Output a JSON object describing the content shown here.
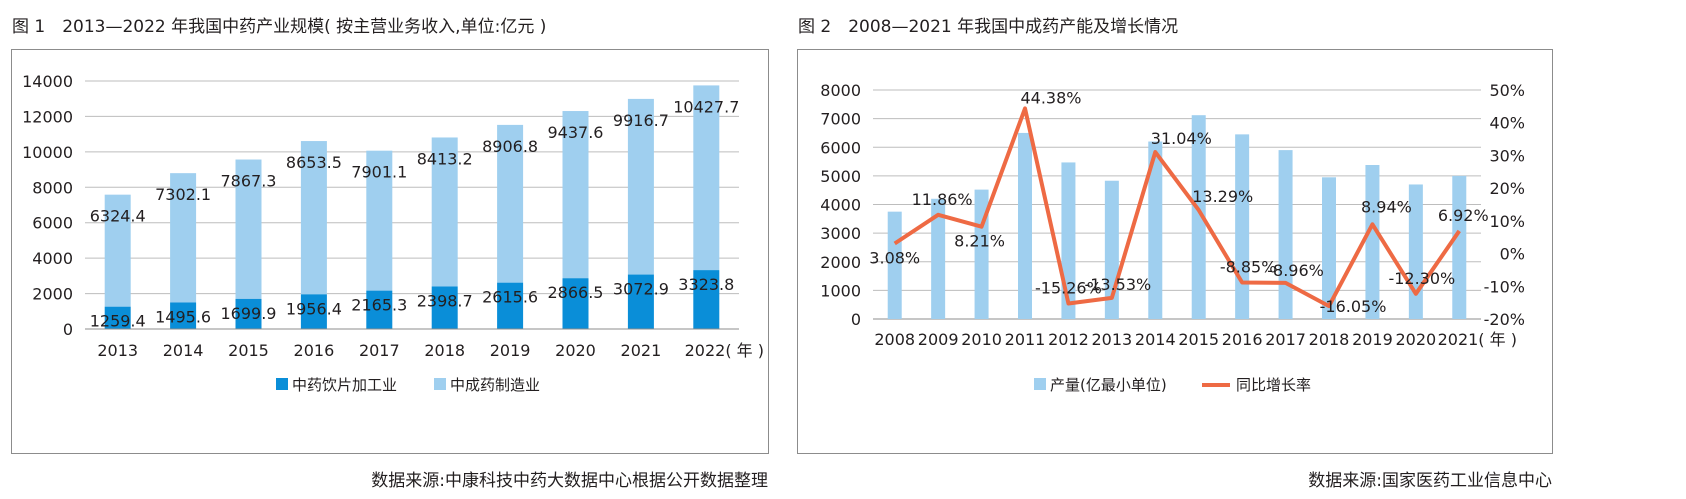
{
  "chart_data": [
    {
      "type": "bar",
      "stacked": true,
      "title": "图 1　2013—2022 年我国中药产业规模( 按主营业务收入,单位:亿元 )",
      "source": "数据来源:中康科技中药大数据中心根据公开数据整理",
      "categories": [
        "2013",
        "2014",
        "2015",
        "2016",
        "2017",
        "2018",
        "2019",
        "2020",
        "2021",
        "2022( 年 )"
      ],
      "ylim": [
        0,
        14000
      ],
      "yticks": [
        0,
        2000,
        4000,
        6000,
        8000,
        10000,
        12000,
        14000
      ],
      "grid": true,
      "legend_position": "bottom",
      "series": [
        {
          "name": "中药饮片加工业",
          "color": "#0a8ed8",
          "values": [
            1259.4,
            1495.6,
            1699.9,
            1956.4,
            2165.3,
            2398.7,
            2615.6,
            2866.5,
            3072.9,
            3323.8
          ]
        },
        {
          "name": "中成药制造业",
          "color": "#9fcfef",
          "values": [
            6324.4,
            7302.1,
            7867.3,
            8653.5,
            7901.1,
            8413.2,
            8906.8,
            9437.6,
            9916.7,
            10427.7
          ]
        }
      ]
    },
    {
      "type": "bar+line",
      "title": "图 2　2008—2021 年我国中成药产能及增长情况",
      "source": "数据来源:国家医药工业信息中心",
      "categories": [
        "2008",
        "2009",
        "2010",
        "2011",
        "2012",
        "2013",
        "2014",
        "2015",
        "2016",
        "2017",
        "2018",
        "2019",
        "2020",
        "2021( 年 )"
      ],
      "ylim_left": [
        0,
        8000
      ],
      "yticks_left": [
        0,
        1000,
        2000,
        3000,
        4000,
        5000,
        6000,
        7000,
        8000
      ],
      "ylim_right": [
        -20,
        50
      ],
      "yticks_right": [
        "-20%",
        "-10%",
        "0%",
        "10%",
        "20%",
        "30%",
        "40%",
        "50%"
      ],
      "yticks_right_values": [
        -20,
        -10,
        0,
        10,
        20,
        30,
        40,
        50
      ],
      "legend_position": "bottom",
      "series": [
        {
          "name": "产量(亿最小单位)",
          "type": "bar",
          "axis": "left",
          "color": "#9fcfef",
          "values": [
            3750,
            4200,
            4520,
            6500,
            5470,
            4830,
            6200,
            7120,
            6450,
            5900,
            4950,
            5380,
            4700,
            5000
          ]
        },
        {
          "name": "同比增长率",
          "type": "line",
          "axis": "right",
          "color": "#ee6a44",
          "values": [
            3.08,
            11.86,
            8.21,
            44.38,
            -15.26,
            -13.53,
            31.04,
            13.29,
            -8.85,
            -8.96,
            -16.05,
            8.94,
            -12.3,
            6.92
          ],
          "labels": [
            "3.08%",
            "11.86%",
            "8.21%",
            "44.38%",
            "-15.26%",
            "-13.53%",
            "31.04%",
            "13.29%",
            "-8.85%",
            "-8.96%",
            "-16.05%",
            "8.94%",
            "-12.30%",
            "6.92%"
          ]
        }
      ]
    }
  ]
}
